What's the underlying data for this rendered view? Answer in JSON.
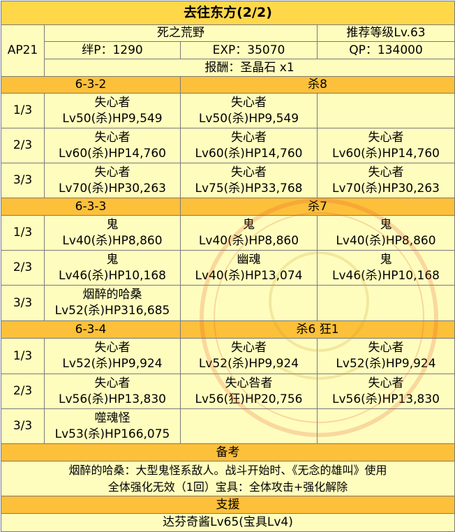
{
  "title": "去往东方(2/2)",
  "info": {
    "ap": "AP21",
    "location": "死之荒野",
    "recommended_level": "推荐等级Lv.63",
    "bond": "绊P：1290",
    "exp": "EXP：35070",
    "qp": "QP：134000",
    "reward": "报酬：圣晶石 x1"
  },
  "battles": [
    {
      "stage": "6-3-2",
      "classes": "杀8",
      "waves": [
        {
          "label": "1/3",
          "enemies": [
            {
              "name": "失心者",
              "stats": "Lv50(杀)HP9,549"
            },
            {
              "name": "失心者",
              "stats": "Lv50(杀)HP9,549"
            },
            {
              "name": "",
              "stats": ""
            }
          ]
        },
        {
          "label": "2/3",
          "enemies": [
            {
              "name": "失心者",
              "stats": "Lv60(杀)HP14,760"
            },
            {
              "name": "失心者",
              "stats": "Lv60(杀)HP14,760"
            },
            {
              "name": "失心者",
              "stats": "Lv60(杀)HP14,760"
            }
          ]
        },
        {
          "label": "3/3",
          "enemies": [
            {
              "name": "失心者",
              "stats": "Lv70(杀)HP30,263"
            },
            {
              "name": "失心者",
              "stats": "Lv75(杀)HP33,768"
            },
            {
              "name": "失心者",
              "stats": "Lv70(杀)HP30,263"
            }
          ]
        }
      ]
    },
    {
      "stage": "6-3-3",
      "classes": "杀7",
      "waves": [
        {
          "label": "1/3",
          "enemies": [
            {
              "name": "鬼",
              "stats": "Lv40(杀)HP8,860"
            },
            {
              "name": "鬼",
              "stats": "Lv40(杀)HP8,860"
            },
            {
              "name": "鬼",
              "stats": "Lv40(杀)HP8,860"
            }
          ]
        },
        {
          "label": "2/3",
          "enemies": [
            {
              "name": "鬼",
              "stats": "Lv46(杀)HP10,168"
            },
            {
              "name": "幽魂",
              "stats": "Lv40(杀)HP13,074"
            },
            {
              "name": "鬼",
              "stats": "Lv46(杀)HP10,168"
            }
          ]
        },
        {
          "label": "3/3",
          "enemies": [
            {
              "name": "烟醉的哈桑",
              "stats": "Lv52(杀)HP316,685"
            },
            {
              "name": "",
              "stats": ""
            },
            {
              "name": "",
              "stats": ""
            }
          ]
        }
      ]
    },
    {
      "stage": "6-3-4",
      "classes": "杀6 狂1",
      "waves": [
        {
          "label": "1/3",
          "enemies": [
            {
              "name": "失心者",
              "stats": "Lv52(杀)HP9,924"
            },
            {
              "name": "失心者",
              "stats": "Lv52(杀)HP9,924"
            },
            {
              "name": "失心者",
              "stats": "Lv52(杀)HP9,924"
            }
          ]
        },
        {
          "label": "2/3",
          "enemies": [
            {
              "name": "失心者",
              "stats": "Lv56(杀)HP13,830"
            },
            {
              "name": "失心咎者",
              "stats": "Lv56(狂)HP20,756"
            },
            {
              "name": "失心者",
              "stats": "Lv56(杀)HP13,830"
            }
          ]
        },
        {
          "label": "3/3",
          "enemies": [
            {
              "name": "噬魂怪",
              "stats": "Lv53(杀)HP166,075"
            },
            {
              "name": "",
              "stats": ""
            },
            {
              "name": "",
              "stats": ""
            }
          ]
        }
      ]
    }
  ],
  "notes": {
    "header": "备考",
    "line1": "烟醉的哈桑：大型鬼怪系敌人。战斗开始时、《无念的雄叫》使用",
    "line2": "全体强化无效（1回）宝具：全体攻击+强化解除"
  },
  "support": {
    "header": "支援",
    "value": "达芬奇酱Lv65(宝具Lv4)"
  },
  "colors": {
    "title_bg": "#ffd84a",
    "header_bg": "#fcc03a",
    "cell_bg": "#fffdbe",
    "border": "#7a7a7a"
  }
}
